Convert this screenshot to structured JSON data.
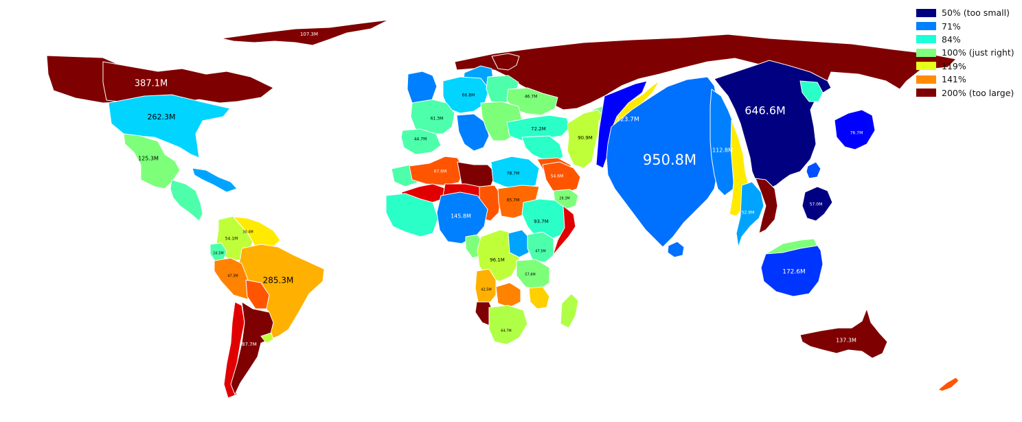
{
  "map": {
    "regions": [
      {
        "name": "alaska",
        "label": "",
        "fill": "#7f0000"
      },
      {
        "name": "canada",
        "label": "387.1M",
        "fill": "#7f0000"
      },
      {
        "name": "greenland",
        "label": "107.3M",
        "fill": "#7f0000"
      },
      {
        "name": "usa",
        "label": "262.3M",
        "fill": "#00d4ff"
      },
      {
        "name": "mexico",
        "label": "125.3M",
        "fill": "#7dff7a"
      },
      {
        "name": "central-america",
        "label": "",
        "fill": "#4dffaa"
      },
      {
        "name": "caribbean-cuba",
        "label": "",
        "fill": "#00a4ff"
      },
      {
        "name": "colombia",
        "label": "54.1M",
        "fill": "#bfff3a"
      },
      {
        "name": "venezuela",
        "label": "30.4M",
        "fill": "#ffea00"
      },
      {
        "name": "peru",
        "label": "47.3M",
        "fill": "#ff8200"
      },
      {
        "name": "ecuador",
        "label": "16.5M",
        "fill": "#4dffaa"
      },
      {
        "name": "brazil",
        "label": "285.3M",
        "fill": "#ffb000"
      },
      {
        "name": "bolivia",
        "label": "",
        "fill": "#ff5500"
      },
      {
        "name": "chile",
        "label": "",
        "fill": "#e00000"
      },
      {
        "name": "argentina",
        "label": "87.7M",
        "fill": "#7f0000"
      },
      {
        "name": "uruguay",
        "label": "",
        "fill": "#bfff3a"
      },
      {
        "name": "russia",
        "label": "",
        "fill": "#7f0000"
      },
      {
        "name": "scandinavia",
        "label": "",
        "fill": "#00a4ff"
      },
      {
        "name": "finland",
        "label": "",
        "fill": "#7f0000"
      },
      {
        "name": "uk",
        "label": "",
        "fill": "#0080ff"
      },
      {
        "name": "france",
        "label": "61.3M",
        "fill": "#4dffaa"
      },
      {
        "name": "spain",
        "label": "44.7M",
        "fill": "#4dffaa"
      },
      {
        "name": "germany",
        "label": "66.8M",
        "fill": "#00d4ff"
      },
      {
        "name": "poland",
        "label": "",
        "fill": "#4dffaa"
      },
      {
        "name": "ukraine",
        "label": "46.7M",
        "fill": "#7dff7a"
      },
      {
        "name": "italy",
        "label": "",
        "fill": "#0080ff"
      },
      {
        "name": "balkans",
        "label": "",
        "fill": "#7dff7a"
      },
      {
        "name": "turkey",
        "label": "72.2M",
        "fill": "#2bffc8"
      },
      {
        "name": "kazakhstan",
        "label": "90.9M",
        "fill": "#bfff3a"
      },
      {
        "name": "middle-east",
        "label": "",
        "fill": "#2bffc8"
      },
      {
        "name": "iran",
        "label": "",
        "fill": "#ff5500"
      },
      {
        "name": "saudi",
        "label": "54.6M",
        "fill": "#ff5500"
      },
      {
        "name": "yemen",
        "label": "28.3M",
        "fill": "#7dff7a"
      },
      {
        "name": "central-asia",
        "label": "",
        "fill": "#7dff7a"
      },
      {
        "name": "afghanistan",
        "label": "",
        "fill": "#ffea00"
      },
      {
        "name": "pakistan",
        "label": "123.7M",
        "fill": "#0000ff"
      },
      {
        "name": "india",
        "label": "950.8M",
        "fill": "#0070ff"
      },
      {
        "name": "china",
        "label": "646.6M",
        "fill": "#000080"
      },
      {
        "name": "china-west",
        "label": "112.8M",
        "fill": "#0080ff"
      },
      {
        "name": "myanmar",
        "label": "",
        "fill": "#ffea00"
      },
      {
        "name": "thailand",
        "label": "52.9M",
        "fill": "#00a4ff"
      },
      {
        "name": "vietnam",
        "label": "",
        "fill": "#7f0000"
      },
      {
        "name": "korea",
        "label": "",
        "fill": "#2bffc8"
      },
      {
        "name": "japan",
        "label": "76.7M",
        "fill": "#0000ff"
      },
      {
        "name": "philippines",
        "label": "57.0M",
        "fill": "#000080"
      },
      {
        "name": "indonesia",
        "label": "172.6M",
        "fill": "#0035ff"
      },
      {
        "name": "papua",
        "label": "",
        "fill": "#7dff7a"
      },
      {
        "name": "australia",
        "label": "137.3M",
        "fill": "#7f0000"
      },
      {
        "name": "new-zealand",
        "label": "",
        "fill": "#ff5500"
      },
      {
        "name": "morocco",
        "label": "",
        "fill": "#4dffaa"
      },
      {
        "name": "algeria",
        "label": "67.6M",
        "fill": "#ff5500"
      },
      {
        "name": "libya",
        "label": "",
        "fill": "#7f0000"
      },
      {
        "name": "egypt",
        "label": "78.7M",
        "fill": "#00d4ff"
      },
      {
        "name": "sahel-mali",
        "label": "",
        "fill": "#e00000"
      },
      {
        "name": "niger",
        "label": "",
        "fill": "#e00000"
      },
      {
        "name": "chad",
        "label": "",
        "fill": "#ff5500"
      },
      {
        "name": "sudan",
        "label": "65.7M",
        "fill": "#ff6a00"
      },
      {
        "name": "ethiopia",
        "label": "93.7M",
        "fill": "#2bffc8"
      },
      {
        "name": "somalia",
        "label": "",
        "fill": "#e00000"
      },
      {
        "name": "west-africa",
        "label": "",
        "fill": "#2bffc8"
      },
      {
        "name": "nigeria",
        "label": "145.8M",
        "fill": "#0080ff"
      },
      {
        "name": "cameroon",
        "label": "",
        "fill": "#7dff7a"
      },
      {
        "name": "drc",
        "label": "96.1M",
        "fill": "#bfff3a"
      },
      {
        "name": "east-africa",
        "label": "",
        "fill": "#00a4ff"
      },
      {
        "name": "kenya",
        "label": "47.5M",
        "fill": "#4dffaa"
      },
      {
        "name": "tanzania",
        "label": "57.6M",
        "fill": "#7dff7a"
      },
      {
        "name": "angola",
        "label": "42.5M",
        "fill": "#ffb000"
      },
      {
        "name": "zambia",
        "label": "",
        "fill": "#ff8200"
      },
      {
        "name": "mozambique",
        "label": "",
        "fill": "#ffd000"
      },
      {
        "name": "namibia",
        "label": "",
        "fill": "#7f0000"
      },
      {
        "name": "south-africa",
        "label": "64.7M",
        "fill": "#b0ff47"
      },
      {
        "name": "madagascar",
        "label": "",
        "fill": "#b0ff47"
      },
      {
        "name": "sri-lanka",
        "label": "",
        "fill": "#0070ff"
      },
      {
        "name": "taiwan",
        "label": "",
        "fill": "#0050ff"
      }
    ]
  },
  "legend": {
    "items": [
      {
        "label": "50% (too small)",
        "color": "#000080"
      },
      {
        "label": "71%",
        "color": "#0080ff"
      },
      {
        "label": "84%",
        "color": "#1affd8"
      },
      {
        "label": "100% (just right)",
        "color": "#80ff7c"
      },
      {
        "label": "119%",
        "color": "#e6ff1a"
      },
      {
        "label": "141%",
        "color": "#ff8c00"
      },
      {
        "label": "200% (too large)",
        "color": "#7f0000"
      }
    ]
  }
}
